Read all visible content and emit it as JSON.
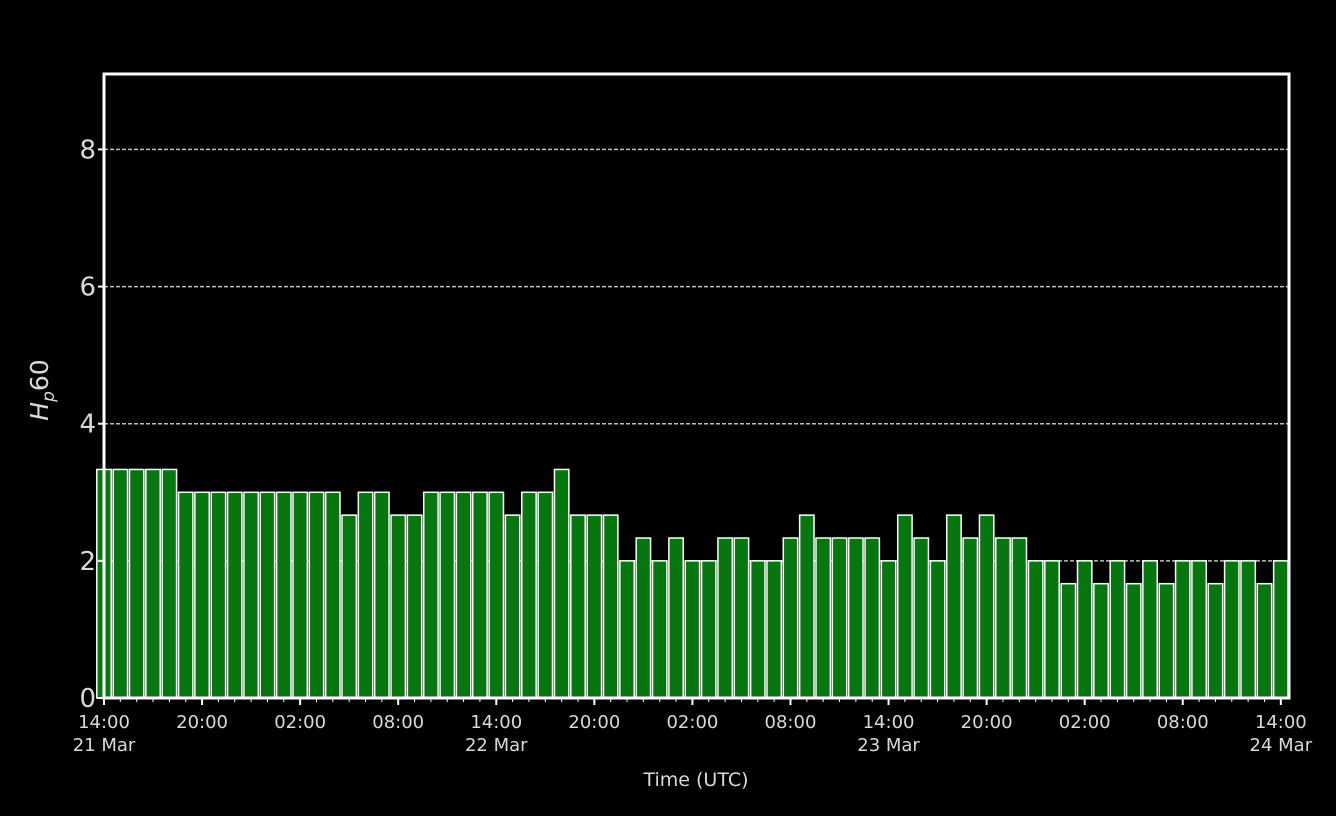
{
  "chart_data": {
    "type": "bar",
    "title": "",
    "xlabel": "Time (UTC)",
    "ylabel_main": "H",
    "ylabel_sub": "p",
    "ylabel_suffix": "60",
    "ylim": [
      0,
      9.1
    ],
    "y_ticks": [
      0,
      2,
      4,
      6,
      8
    ],
    "grid": "horizontal dashed",
    "x_start": "2024-03-21T14:00:00Z",
    "x_end": "2024-03-24T14:30:00Z",
    "bar_width_hours": 1,
    "x_ticks": [
      {
        "time": "2024-03-21T14:00:00Z",
        "label": "14:00",
        "date": "21 Mar"
      },
      {
        "time": "2024-03-21T20:00:00Z",
        "label": "20:00",
        "date": ""
      },
      {
        "time": "2024-03-22T02:00:00Z",
        "label": "02:00",
        "date": ""
      },
      {
        "time": "2024-03-22T08:00:00Z",
        "label": "08:00",
        "date": ""
      },
      {
        "time": "2024-03-22T14:00:00Z",
        "label": "14:00",
        "date": "22 Mar"
      },
      {
        "time": "2024-03-22T20:00:00Z",
        "label": "20:00",
        "date": ""
      },
      {
        "time": "2024-03-23T02:00:00Z",
        "label": "02:00",
        "date": ""
      },
      {
        "time": "2024-03-23T08:00:00Z",
        "label": "08:00",
        "date": ""
      },
      {
        "time": "2024-03-23T14:00:00Z",
        "label": "14:00",
        "date": "23 Mar"
      },
      {
        "time": "2024-03-23T20:00:00Z",
        "label": "20:00",
        "date": ""
      },
      {
        "time": "2024-03-24T02:00:00Z",
        "label": "02:00",
        "date": ""
      },
      {
        "time": "2024-03-24T08:00:00Z",
        "label": "08:00",
        "date": ""
      },
      {
        "time": "2024-03-24T14:00:00Z",
        "label": "14:00",
        "date": "24 Mar"
      }
    ],
    "values": [
      3.333,
      3.333,
      3.333,
      3.333,
      3.333,
      3.0,
      3.0,
      3.0,
      3.0,
      3.0,
      3.0,
      3.0,
      3.0,
      3.0,
      3.0,
      2.667,
      3.0,
      3.0,
      2.667,
      2.667,
      3.0,
      3.0,
      3.0,
      3.0,
      3.0,
      2.667,
      3.0,
      3.0,
      3.333,
      2.667,
      2.667,
      2.667,
      2.0,
      2.333,
      2.0,
      2.333,
      2.0,
      2.0,
      2.333,
      2.333,
      2.0,
      2.0,
      2.333,
      2.667,
      2.333,
      2.333,
      2.333,
      2.333,
      2.0,
      2.667,
      2.333,
      2.0,
      2.667,
      2.333,
      2.667,
      2.333,
      2.333,
      2.0,
      2.0,
      1.667,
      2.0,
      1.667,
      2.0,
      1.667,
      2.0,
      1.667,
      2.0,
      2.0,
      1.667,
      2.0,
      2.0,
      1.667,
      2.0
    ],
    "colors": {
      "bar_fill": "#06770f",
      "bar_edge": "#ffffff",
      "background": "#000000",
      "axes": "#ffffff",
      "grid": "#bfbfbf",
      "text": "#d9d9d9"
    }
  }
}
